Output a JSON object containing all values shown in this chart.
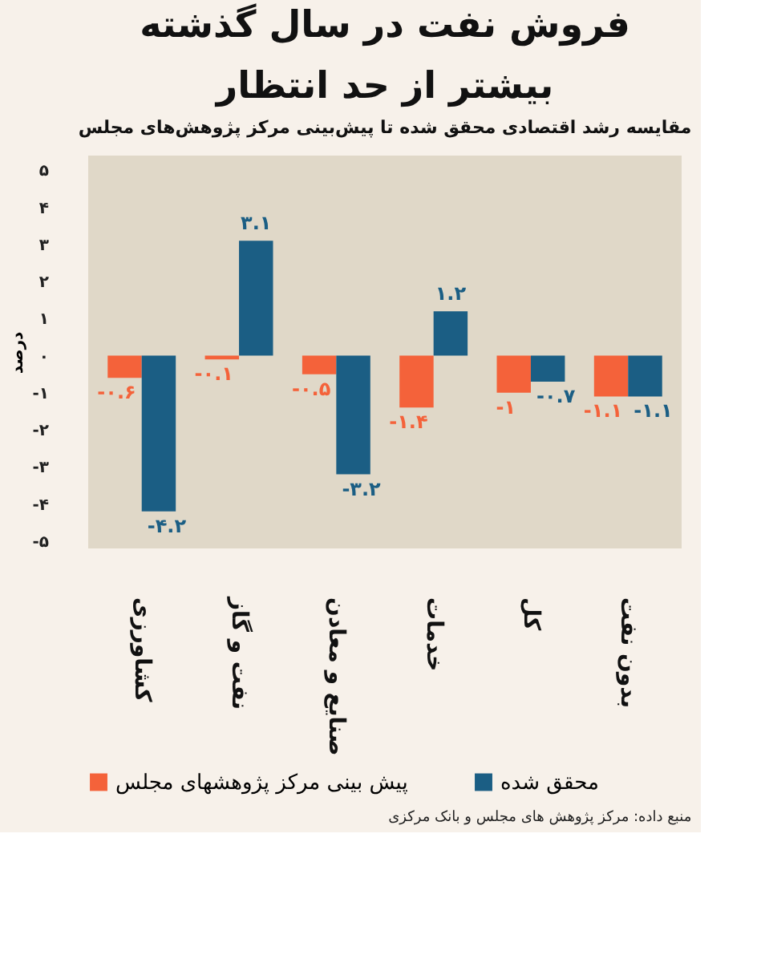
{
  "chart_data": {
    "type": "bar",
    "title": "فروش نفت در سال گذشته\nبیشتر از حد انتظار",
    "subtitle": "مقایسه رشد اقتصادی محقق شده تا پیش‌بینی مرکز پژوهش‌های مجلس",
    "ylabel": "درصد",
    "categories": [
      "کشاورزی",
      "نفت و گاز",
      "صنایع و معادن",
      "خدمات",
      "کل",
      "بدون نفت"
    ],
    "series": [
      {
        "name": "پیش بینی مرکز پژوهشهای مجلس",
        "color": "#f4623a",
        "values": [
          -0.6,
          -0.1,
          -0.5,
          -1.4,
          -1,
          -1.1
        ],
        "value_labels": [
          "-۰.۶",
          "-۰.۱",
          "-۰.۵",
          "-۱.۴",
          "-۱",
          "-۱.۱"
        ]
      },
      {
        "name": "محقق شده",
        "color": "#1b5e84",
        "values": [
          -4.2,
          3.1,
          -3.2,
          1.2,
          -0.7,
          -1.1
        ],
        "value_labels": [
          "-۴.۲",
          "۳.۱",
          "-۳.۲",
          "۱.۲",
          "-۰.۷",
          "-۱.۱"
        ]
      }
    ],
    "ylim": [
      -5.2,
      5.4
    ],
    "yticks": [
      {
        "value": -5,
        "label": "-۵"
      },
      {
        "value": -4,
        "label": "-۴"
      },
      {
        "value": -3,
        "label": "-۳"
      },
      {
        "value": -2,
        "label": "-۲"
      },
      {
        "value": -1,
        "label": "-۱"
      },
      {
        "value": 0,
        "label": "۰"
      },
      {
        "value": 1,
        "label": "۱"
      },
      {
        "value": 2,
        "label": "۲"
      },
      {
        "value": 3,
        "label": "۳"
      },
      {
        "value": 4,
        "label": "۴"
      },
      {
        "value": 5,
        "label": "۵"
      }
    ],
    "grid": false,
    "legend": "bottom",
    "annotations": [
      "منبع داده: مرکز پژوهش های مجلس و بانک مرکزی"
    ]
  }
}
